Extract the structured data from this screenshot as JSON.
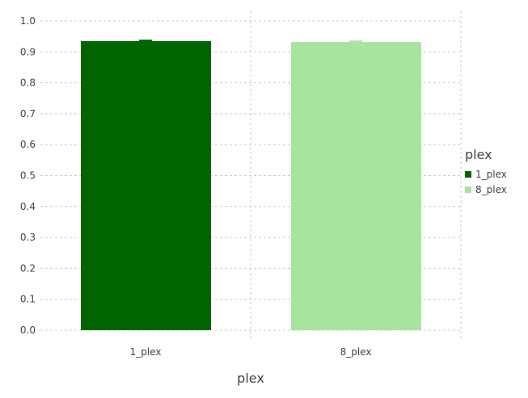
{
  "chart_data": {
    "type": "bar",
    "categories": [
      "1_plex",
      "8_plex"
    ],
    "values": [
      0.935,
      0.932
    ],
    "error_upper": [
      0.937,
      0.934
    ],
    "xlabel": "plex",
    "ylabel": "",
    "ylim": [
      0,
      1.0
    ],
    "yticks": [
      "0.0",
      "0.1",
      "0.2",
      "0.3",
      "0.4",
      "0.5",
      "0.6",
      "0.7",
      "0.8",
      "0.9",
      "1.0"
    ],
    "grid": true,
    "legend": {
      "title": "plex",
      "placement": "right",
      "entries": [
        "1_plex",
        "8_plex"
      ]
    },
    "colors": [
      "#006400",
      "#a8e4a0"
    ]
  }
}
